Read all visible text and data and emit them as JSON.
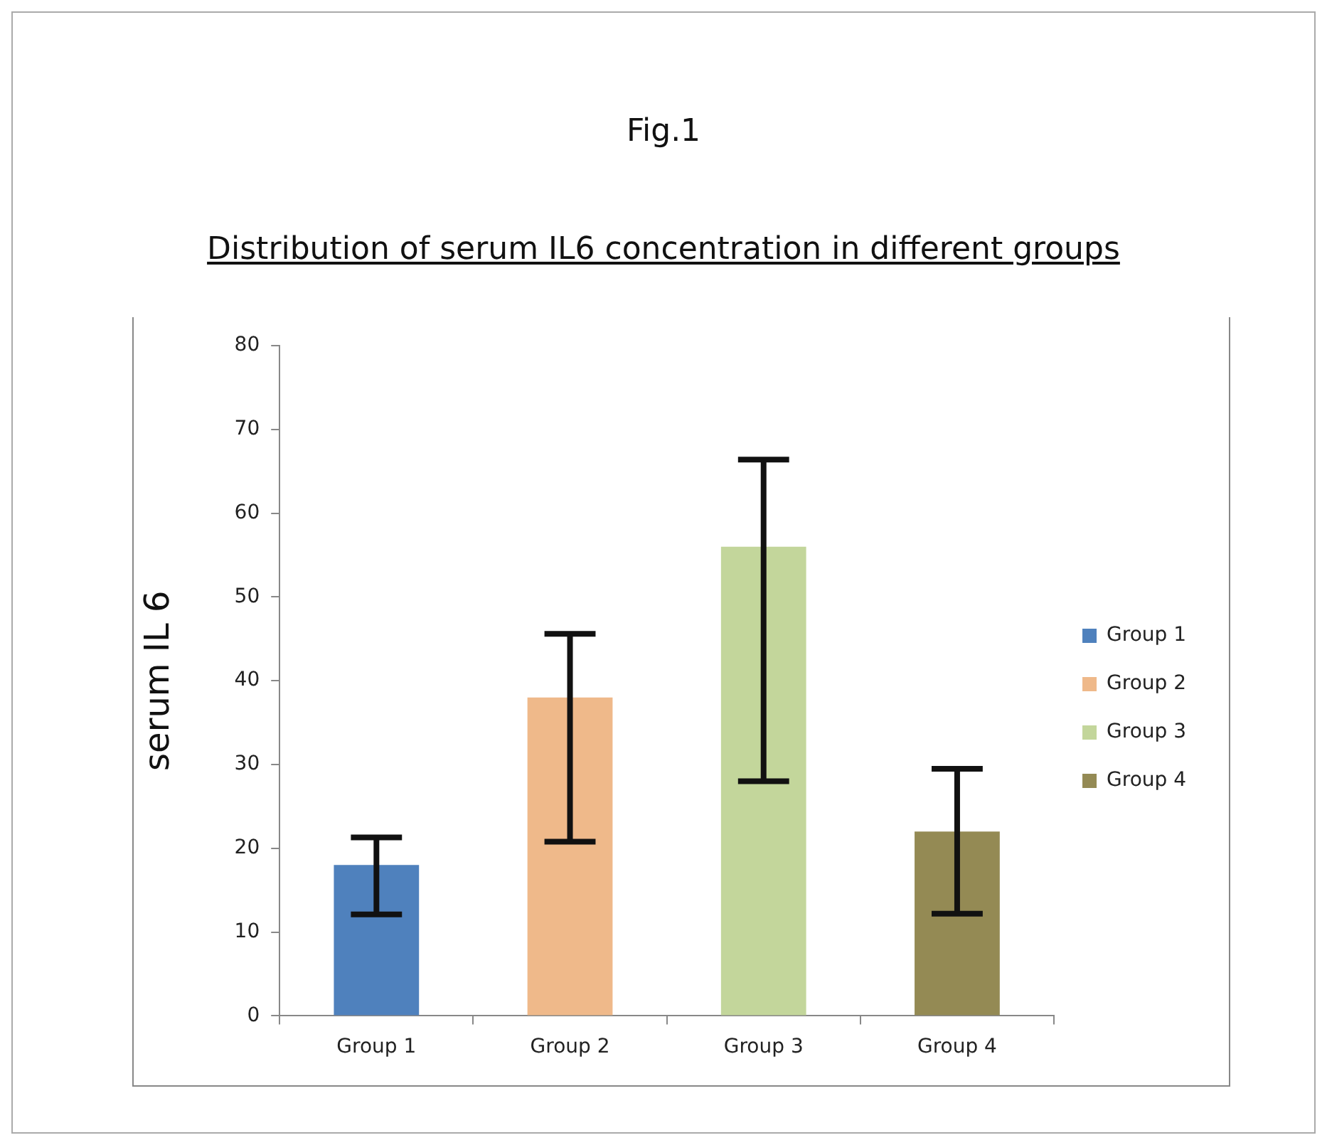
{
  "chart_data": {
    "type": "bar",
    "title": "Fig.1",
    "subtitle": "Distribution of serum IL6 concentration in different groups",
    "ylabel": "serum IL 6",
    "categories": [
      "Group 1",
      "Group 2",
      "Group 3",
      "Group 4"
    ],
    "series": [
      {
        "name": "Group 1",
        "color": "#4f81bd",
        "values": [
          18,
          null,
          null,
          null
        ],
        "errors": [
          [
            12.1,
            21.3
          ],
          null,
          null,
          null
        ]
      },
      {
        "name": "Group 2",
        "color": "#efb98a",
        "values": [
          null,
          38,
          null,
          null
        ],
        "errors": [
          null,
          [
            20.8,
            45.6
          ],
          null,
          null
        ]
      },
      {
        "name": "Group 3",
        "color": "#c3d69b",
        "values": [
          null,
          null,
          56,
          null
        ],
        "errors": [
          null,
          null,
          [
            28,
            66.4
          ],
          null
        ]
      },
      {
        "name": "Group 4",
        "color": "#948a54",
        "values": [
          null,
          null,
          null,
          22
        ],
        "errors": [
          null,
          null,
          null,
          [
            12.2,
            29.5
          ]
        ]
      }
    ],
    "ylim": [
      0,
      80
    ],
    "yticks": [
      0,
      10,
      20,
      30,
      40,
      50,
      60,
      70,
      80
    ],
    "grid": false,
    "legend": "right"
  }
}
